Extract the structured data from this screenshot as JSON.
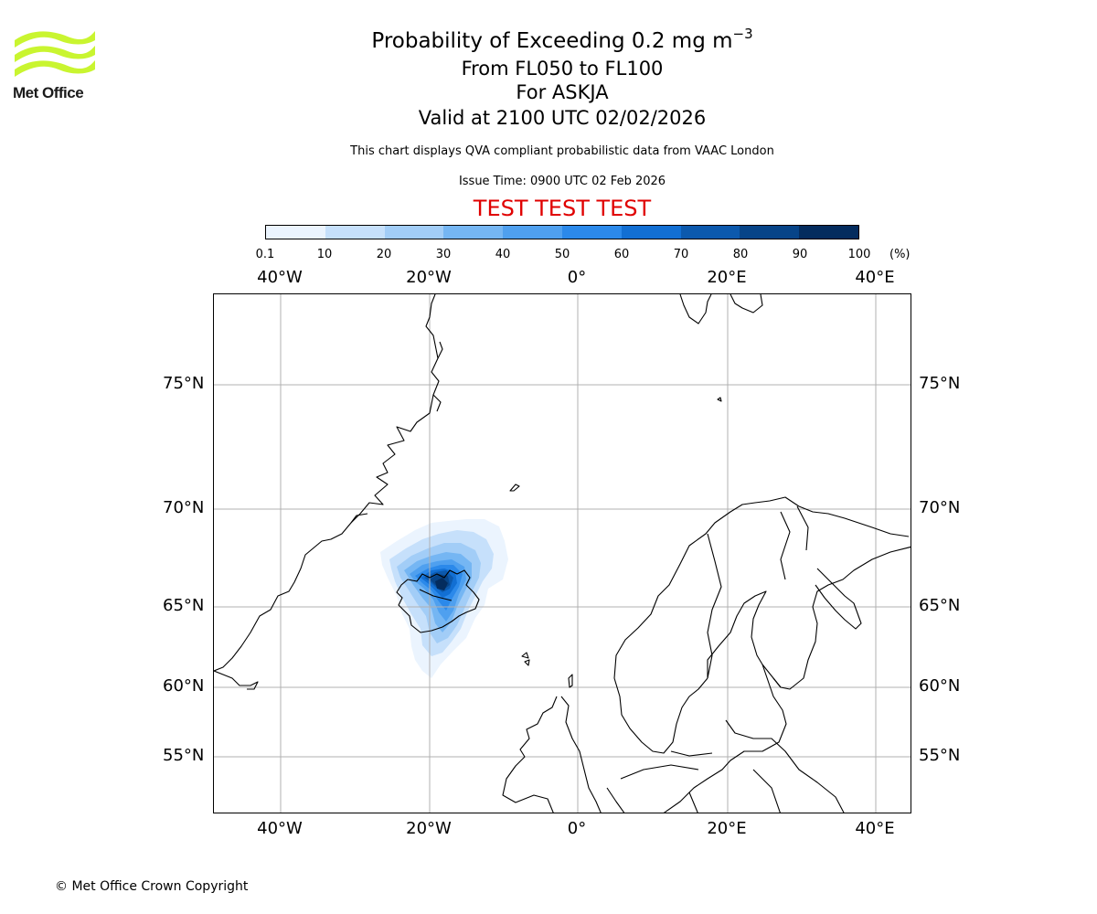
{
  "logo": {
    "text": "Met Office",
    "color": "#c9f530"
  },
  "title": {
    "main": "Probability of Exceeding 0.2 mg m",
    "sup": "−3"
  },
  "subtitles": [
    "From FL050 to FL100",
    "For ASKJA",
    "Valid at 2100 UTC 02/02/2026"
  ],
  "note": "This chart displays QVA compliant probabilistic data from VAAC London",
  "issue_time": "Issue Time: 0900 UTC 02 Feb 2026",
  "test_banner": "TEST TEST TEST",
  "colorbar": {
    "ticks": [
      "0.1",
      "10",
      "20",
      "30",
      "40",
      "50",
      "60",
      "70",
      "80",
      "90",
      "100"
    ],
    "unit": "(%)",
    "colors": [
      "#ebf4fe",
      "#c6e0fb",
      "#a2cdf7",
      "#75b6f3",
      "#4fa0ef",
      "#2b89ea",
      "#126fd3",
      "#0c59ad",
      "#074488",
      "#042c5e"
    ]
  },
  "map": {
    "lon_labels_top": [
      "40°W",
      "20°W",
      "0°",
      "20°E",
      "40°E"
    ],
    "lon_labels_bottom": [
      "40°W",
      "20°W",
      "0°",
      "20°E",
      "40°E"
    ],
    "lat_labels_left": [
      "75°N",
      "70°N",
      "65°N",
      "60°N",
      "55°N"
    ],
    "lat_labels_right": [
      "75°N",
      "70°N",
      "65°N",
      "60°N",
      "55°N"
    ],
    "grid": true,
    "volcano": "ASKJA",
    "plume_max_probability_pct": 100
  },
  "footer": "© Met Office Crown Copyright"
}
